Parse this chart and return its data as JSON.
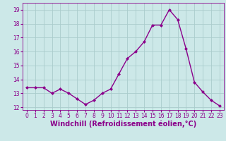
{
  "x": [
    0,
    1,
    2,
    3,
    4,
    5,
    6,
    7,
    8,
    9,
    10,
    11,
    12,
    13,
    14,
    15,
    16,
    17,
    18,
    19,
    20,
    21,
    22,
    23
  ],
  "y": [
    13.4,
    13.4,
    13.4,
    13.0,
    13.3,
    13.0,
    12.6,
    12.2,
    12.5,
    13.0,
    13.3,
    14.4,
    15.5,
    16.0,
    16.7,
    17.9,
    17.9,
    19.0,
    18.3,
    16.2,
    13.8,
    13.1,
    12.5,
    12.1
  ],
  "line_color": "#8B008B",
  "marker": "D",
  "marker_size": 2.0,
  "bg_color": "#cce8e8",
  "grid_color": "#aacccc",
  "xlabel": "Windchill (Refroidissement éolien,°C)",
  "ylim": [
    11.8,
    19.5
  ],
  "yticks": [
    12,
    13,
    14,
    15,
    16,
    17,
    18,
    19
  ],
  "xlim": [
    -0.5,
    23.5
  ],
  "xticks": [
    0,
    1,
    2,
    3,
    4,
    5,
    6,
    7,
    8,
    9,
    10,
    11,
    12,
    13,
    14,
    15,
    16,
    17,
    18,
    19,
    20,
    21,
    22,
    23
  ],
  "tick_label_color": "#8B008B",
  "tick_label_size": 5.5,
  "xlabel_size": 7.0,
  "line_width": 1.0,
  "marker_color": "#8B008B"
}
